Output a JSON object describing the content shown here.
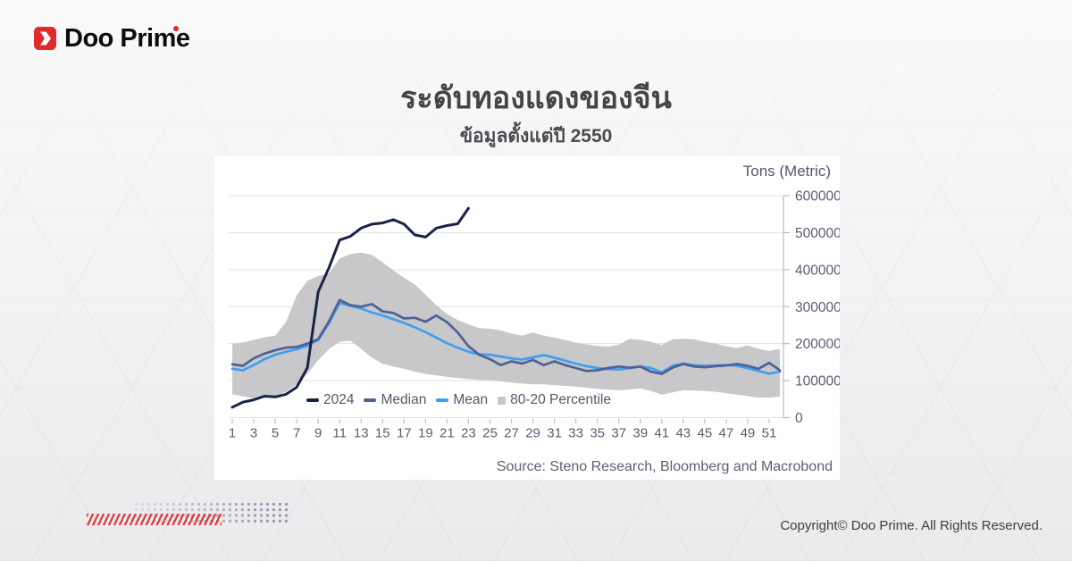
{
  "brand": {
    "name": "Doo Prime"
  },
  "header": {
    "title": "ระดับทองแดงของจีน",
    "subtitle": "ข้อมูลตั้งแต่ปี 2550"
  },
  "chart_data": {
    "type": "line",
    "unit_label": "Tons (Metric)",
    "ylim": [
      0,
      600000
    ],
    "y_ticks": [
      600000,
      500000,
      400000,
      300000,
      200000,
      100000,
      0
    ],
    "x_tick_labels": [
      1,
      3,
      5,
      7,
      9,
      11,
      13,
      15,
      17,
      19,
      21,
      23,
      25,
      27,
      29,
      31,
      33,
      35,
      37,
      39,
      41,
      43,
      45,
      47,
      49,
      51
    ],
    "weeks": 52,
    "grid_on": true,
    "legend_position": "bottom-inside",
    "series": [
      {
        "name": "2024",
        "color": "#1a2347",
        "width": 3,
        "values": [
          28000,
          42000,
          48000,
          58000,
          56000,
          63000,
          82000,
          135000,
          340000,
          405000,
          480000,
          490000,
          512000,
          523000,
          526000,
          535000,
          523000,
          494000,
          488000,
          512000,
          519000,
          524000,
          566000
        ]
      },
      {
        "name": "Median",
        "color": "#4f6096",
        "width": 2.7,
        "values": [
          144000,
          140000,
          160000,
          173000,
          182000,
          189000,
          191000,
          200000,
          212000,
          260000,
          318000,
          304000,
          300000,
          307000,
          287000,
          283000,
          268000,
          270000,
          259000,
          276000,
          258000,
          230000,
          193000,
          170000,
          158000,
          142000,
          152000,
          146000,
          156000,
          142000,
          152000,
          142000,
          134000,
          126000,
          128000,
          134000,
          138000,
          135000,
          138000,
          124000,
          118000,
          135000,
          145000,
          138000,
          136000,
          139000,
          141000,
          145000,
          140000,
          132000,
          148000,
          128000
        ]
      },
      {
        "name": "Mean",
        "color": "#3f9ef0",
        "width": 2.7,
        "values": [
          132000,
          128000,
          142000,
          158000,
          170000,
          178000,
          185000,
          194000,
          210000,
          255000,
          310000,
          302000,
          295000,
          284000,
          276000,
          266000,
          256000,
          244000,
          231000,
          216000,
          201000,
          189000,
          178000,
          171000,
          170000,
          165000,
          160000,
          157000,
          163000,
          169000,
          162000,
          154000,
          146000,
          139000,
          134000,
          131000,
          130000,
          134000,
          138000,
          134000,
          122000,
          140000,
          146000,
          142000,
          140000,
          141000,
          142000,
          140000,
          134000,
          126000,
          119000,
          124000
        ]
      }
    ],
    "band": {
      "name": "80-20 Percentile",
      "color": "#c8c8ca",
      "upper": [
        200000,
        203000,
        210000,
        217000,
        222000,
        258000,
        330000,
        370000,
        383000,
        390000,
        430000,
        442000,
        446000,
        440000,
        420000,
        398000,
        378000,
        360000,
        332000,
        304000,
        280000,
        264000,
        252000,
        242000,
        240000,
        236000,
        227000,
        222000,
        230000,
        222000,
        216000,
        210000,
        202000,
        198000,
        194000,
        192000,
        197000,
        213000,
        210000,
        205000,
        196000,
        212000,
        213000,
        212000,
        205000,
        200000,
        193000,
        188000,
        195000,
        186000,
        180000,
        186000
      ],
      "lower": [
        63000,
        58000,
        52000,
        53000,
        58000,
        70000,
        90000,
        118000,
        155000,
        185000,
        205000,
        208000,
        186000,
        162000,
        145000,
        138000,
        132000,
        124000,
        118000,
        114000,
        110000,
        107000,
        104000,
        102000,
        101000,
        98000,
        95000,
        92000,
        90000,
        90000,
        88000,
        86000,
        84000,
        81000,
        78000,
        76000,
        74000,
        76000,
        79000,
        72000,
        62000,
        68000,
        74000,
        73000,
        72000,
        70000,
        66000,
        62000,
        58000,
        54000,
        54000,
        57000
      ]
    },
    "grid_color": "#e1e1e3",
    "axis_color": "#b9bac4",
    "tick_text_color": "#5b5c72",
    "source": "Source: Steno Research, Bloomberg and Macrobond"
  },
  "decor": {
    "stripe_color": "#dd3a38",
    "dot_color": "#8d96ab"
  },
  "colors": {
    "accent_red": "#e02b2b",
    "brand_text": "#0d0d0d",
    "card_bg": "#ffffff"
  },
  "footer": {
    "copyright": "Copyright© Doo Prime. All Rights Reserved."
  }
}
